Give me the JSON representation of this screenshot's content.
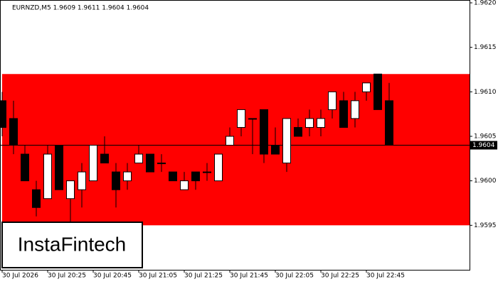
{
  "chart_data": {
    "type": "candlestick",
    "title": "EURNZD,M5  1.9609 1.9611 1.9604 1.9604",
    "categories": [
      "30 Jul 2026",
      null,
      null,
      null,
      "30 Jul 20:25",
      null,
      null,
      null,
      "30 Jul 20:45",
      null,
      null,
      null,
      "30 Jul 21:05",
      null,
      null,
      null,
      "30 Jul 21:25",
      null,
      null,
      null,
      "30 Jul 21:45",
      null,
      null,
      null,
      "30 Jul 22:05",
      null,
      null,
      null,
      "30 Jul 22:25",
      null,
      null,
      null,
      "30 Jul 22:45",
      null,
      null
    ],
    "open": [
      1.9609,
      1.9607,
      1.9603,
      1.9599,
      1.9598,
      1.9604,
      1.9598,
      1.9599,
      1.96,
      1.9603,
      1.9601,
      1.96,
      1.9602,
      1.9603,
      1.9602,
      1.9601,
      1.9599,
      1.9601,
      1.9601,
      1.96,
      1.9604,
      1.9606,
      1.9607,
      1.9608,
      1.9604,
      1.9602,
      1.9606,
      1.9606,
      1.9606,
      1.9608,
      1.9609,
      1.9607,
      1.961,
      1.9612,
      1.9609
    ],
    "high": [
      1.961,
      1.9609,
      1.9604,
      1.96,
      1.9604,
      1.9604,
      1.96,
      1.9602,
      1.9604,
      1.9605,
      1.9602,
      1.9602,
      1.9604,
      1.9603,
      1.9603,
      1.9601,
      1.9601,
      1.9601,
      1.9602,
      1.9603,
      1.9606,
      1.9608,
      1.9607,
      1.9608,
      1.9606,
      1.9607,
      1.9607,
      1.9608,
      1.9608,
      1.961,
      1.961,
      1.961,
      1.9611,
      1.9612,
      1.9611
    ],
    "low": [
      1.9605,
      1.9603,
      1.96,
      1.9596,
      1.9598,
      1.9599,
      1.9595,
      1.9597,
      1.96,
      1.9602,
      1.9597,
      1.9599,
      1.9602,
      1.9601,
      1.9601,
      1.96,
      1.9599,
      1.9599,
      1.96,
      1.96,
      1.9604,
      1.9605,
      1.9603,
      1.9602,
      1.9603,
      1.9601,
      1.9605,
      1.9605,
      1.9605,
      1.9607,
      1.9606,
      1.9606,
      1.9609,
      1.9608,
      1.9604
    ],
    "close": [
      1.9606,
      1.9604,
      1.96,
      1.9597,
      1.9603,
      1.9599,
      1.96,
      1.9601,
      1.9604,
      1.9602,
      1.9599,
      1.9601,
      1.9603,
      1.9601,
      1.9602,
      1.96,
      1.96,
      1.96,
      1.9601,
      1.9603,
      1.9605,
      1.9608,
      1.9607,
      1.9603,
      1.9603,
      1.9607,
      1.9605,
      1.9607,
      1.9607,
      1.961,
      1.9606,
      1.9609,
      1.9611,
      1.9608,
      1.9604
    ],
    "up_color": "#ffffff",
    "down_color": "#000000",
    "zone": [
      1.9595,
      1.9612
    ],
    "zone_color": "#ff0000",
    "current_price": {
      "value": 1.9604,
      "label": "1.9604"
    },
    "ylim": [
      1.959,
      1.962
    ],
    "yticks": [
      {
        "value": 1.962,
        "label": "1.9620"
      },
      {
        "value": 1.9615,
        "label": "1.9615"
      },
      {
        "value": 1.961,
        "label": "1.9610"
      },
      {
        "value": 1.9605,
        "label": "1.9605"
      },
      {
        "value": 1.96,
        "label": "1.9600"
      },
      {
        "value": 1.9595,
        "label": "1.9595"
      }
    ],
    "watermark": "InstaFintech"
  }
}
